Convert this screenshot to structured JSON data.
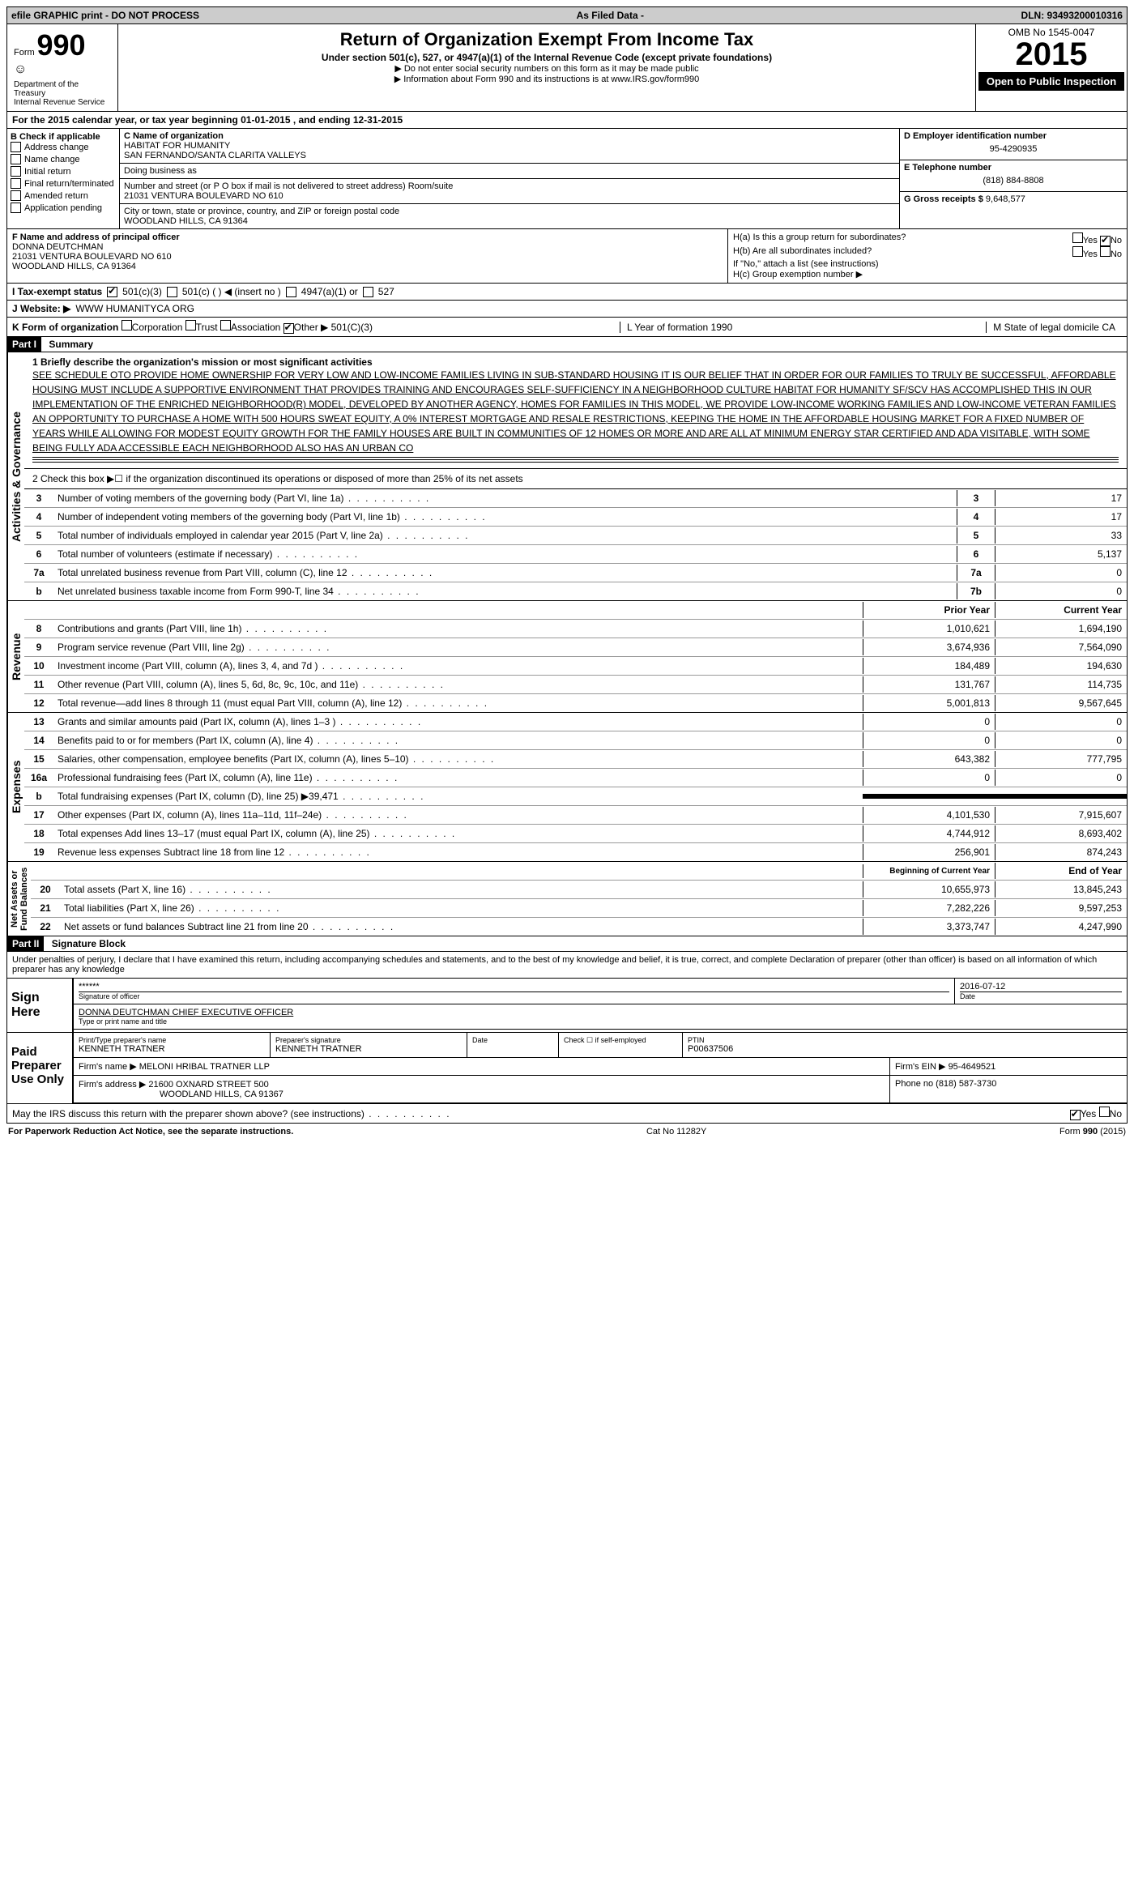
{
  "topbar": {
    "left": "efile GRAPHIC print - DO NOT PROCESS",
    "mid": "As Filed Data -",
    "right": "DLN: 93493200010316"
  },
  "header": {
    "formword": "Form",
    "formno": "990",
    "dept": "Department of the Treasury\nInternal Revenue Service",
    "title": "Return of Organization Exempt From Income Tax",
    "subtitle": "Under section 501(c), 527, or 4947(a)(1) of the Internal Revenue Code (except private foundations)",
    "note1": "▶ Do not enter social security numbers on this form as it may be made public",
    "note2": "▶ Information about Form 990 and its instructions is at www.IRS.gov/form990",
    "omb": "OMB No 1545-0047",
    "year": "2015",
    "open": "Open to Public Inspection"
  },
  "A": {
    "text": "For the 2015 calendar year, or tax year beginning 01-01-2015   , and ending 12-31-2015"
  },
  "B": {
    "label": "B  Check if applicable",
    "items": [
      "Address change",
      "Name change",
      "Initial return",
      "Final return/terminated",
      "Amended return",
      "Application pending"
    ]
  },
  "C": {
    "nameLabel": "C Name of organization",
    "name1": "HABITAT FOR HUMANITY",
    "name2": "SAN FERNANDO/SANTA CLARITA VALLEYS",
    "dba": "Doing business as",
    "addrLabel": "Number and street (or P O  box if mail is not delivered to street address) Room/suite",
    "addr": "21031 VENTURA BOULEVARD NO 610",
    "cityLabel": "City or town, state or province, country, and ZIP or foreign postal code",
    "city": "WOODLAND HILLS, CA  91364"
  },
  "D": {
    "label": "D Employer identification number",
    "val": "95-4290935"
  },
  "E": {
    "label": "E Telephone number",
    "val": "(818) 884-8808"
  },
  "G": {
    "label": "G Gross receipts $",
    "val": "9,648,577"
  },
  "F": {
    "label": "F   Name and address of principal officer",
    "name": "DONNA DEUTCHMAN",
    "addr1": "21031 VENTURA BOULEVARD NO 610",
    "addr2": "WOODLAND HILLS, CA  91364"
  },
  "H": {
    "a": "H(a)  Is this a group return for subordinates?",
    "ayes": "Yes",
    "ano": "No",
    "b": "H(b)  Are all subordinates included?",
    "bnote": "If \"No,\" attach a list  (see instructions)",
    "c": "H(c)   Group exemption number ▶"
  },
  "I": {
    "label": "I   Tax-exempt status",
    "opts": [
      "501(c)(3)",
      "501(c) ( ) ◀ (insert no )",
      "4947(a)(1) or",
      "527"
    ]
  },
  "J": {
    "label": "J   Website: ▶",
    "val": "WWW HUMANITYCA ORG"
  },
  "K": {
    "label": "K Form of organization",
    "opts": [
      "Corporation",
      "Trust",
      "Association",
      "Other ▶"
    ],
    "otherval": "501(C)(3)",
    "L": "L Year of formation  1990",
    "M": "M State of legal domicile  CA"
  },
  "part1": {
    "header": "Part I",
    "title": "Summary"
  },
  "mission": {
    "lead": "1 Briefly describe the organization's mission or most significant activities",
    "text": "SEE SCHEDULE OTO PROVIDE HOME OWNERSHIP FOR VERY LOW AND LOW-INCOME FAMILIES LIVING IN SUB-STANDARD HOUSING IT IS OUR BELIEF THAT IN ORDER FOR OUR FAMILIES TO TRULY BE SUCCESSFUL, AFFORDABLE HOUSING MUST INCLUDE A SUPPORTIVE ENVIRONMENT THAT PROVIDES TRAINING AND ENCOURAGES SELF-SUFFICIENCY IN A NEIGHBORHOOD CULTURE  HABITAT FOR HUMANITY SF/SCV HAS ACCOMPLISHED THIS IN OUR IMPLEMENTATION OF THE ENRICHED NEIGHBORHOOD(R) MODEL, DEVELOPED BY ANOTHER AGENCY, HOMES FOR FAMILIES IN THIS MODEL, WE PROVIDE LOW-INCOME WORKING FAMILIES AND LOW-INCOME VETERAN FAMILIES AN OPPORTUNITY TO PURCHASE A HOME WITH 500 HOURS SWEAT EQUITY, A 0% INTEREST MORTGAGE AND RESALE RESTRICTIONS, KEEPING THE HOME IN THE AFFORDABLE HOUSING MARKET FOR A FIXED NUMBER OF YEARS WHILE ALLOWING FOR MODEST EQUITY GROWTH FOR THE FAMILY HOUSES ARE BUILT IN COMMUNITIES OF 12 HOMES OR MORE AND ARE ALL AT MINIMUM ENERGY STAR CERTIFIED AND ADA VISITABLE, WITH SOME BEING FULLY ADA ACCESSIBLE  EACH NEIGHBORHOOD ALSO HAS AN URBAN CO"
  },
  "line2": "2  Check this box ▶☐ if the organization discontinued its operations or disposed of more than 25% of its net assets",
  "govLines": [
    {
      "n": "3",
      "label": "Number of voting members of the governing body (Part VI, line 1a)",
      "key": "3",
      "val": "17"
    },
    {
      "n": "4",
      "label": "Number of independent voting members of the governing body (Part VI, line 1b)",
      "key": "4",
      "val": "17"
    },
    {
      "n": "5",
      "label": "Total number of individuals employed in calendar year 2015 (Part V, line 2a)",
      "key": "5",
      "val": "33"
    },
    {
      "n": "6",
      "label": "Total number of volunteers (estimate if necessary)",
      "key": "6",
      "val": "5,137"
    },
    {
      "n": "7a",
      "label": "Total unrelated business revenue from Part VIII, column (C), line 12",
      "key": "7a",
      "val": "0"
    },
    {
      "n": "b",
      "label": "Net unrelated business taxable income from Form 990-T, line 34",
      "key": "7b",
      "val": "0"
    }
  ],
  "colHead1": "Prior Year",
  "colHead2": "Current Year",
  "revenue": [
    {
      "n": "8",
      "label": "Contributions and grants (Part VIII, line 1h)",
      "c1": "1,010,621",
      "c2": "1,694,190"
    },
    {
      "n": "9",
      "label": "Program service revenue (Part VIII, line 2g)",
      "c1": "3,674,936",
      "c2": "7,564,090"
    },
    {
      "n": "10",
      "label": "Investment income (Part VIII, column (A), lines 3, 4, and 7d )",
      "c1": "184,489",
      "c2": "194,630"
    },
    {
      "n": "11",
      "label": "Other revenue (Part VIII, column (A), lines 5, 6d, 8c, 9c, 10c, and 11e)",
      "c1": "131,767",
      "c2": "114,735"
    },
    {
      "n": "12",
      "label": "Total revenue—add lines 8 through 11 (must equal Part VIII, column (A), line 12)",
      "c1": "5,001,813",
      "c2": "9,567,645"
    }
  ],
  "expenses": [
    {
      "n": "13",
      "label": "Grants and similar amounts paid (Part IX, column (A), lines 1–3 )",
      "c1": "0",
      "c2": "0"
    },
    {
      "n": "14",
      "label": "Benefits paid to or for members (Part IX, column (A), line 4)",
      "c1": "0",
      "c2": "0"
    },
    {
      "n": "15",
      "label": "Salaries, other compensation, employee benefits (Part IX, column (A), lines 5–10)",
      "c1": "643,382",
      "c2": "777,795"
    },
    {
      "n": "16a",
      "label": "Professional fundraising fees (Part IX, column (A), line 11e)",
      "c1": "0",
      "c2": "0"
    },
    {
      "n": "b",
      "label": "Total fundraising expenses (Part IX, column (D), line 25) ▶39,471",
      "c1": "BLACK",
      "c2": "BLACK"
    },
    {
      "n": "17",
      "label": "Other expenses (Part IX, column (A), lines 11a–11d, 11f–24e)",
      "c1": "4,101,530",
      "c2": "7,915,607"
    },
    {
      "n": "18",
      "label": "Total expenses  Add lines 13–17 (must equal Part IX, column (A), line 25)",
      "c1": "4,744,912",
      "c2": "8,693,402"
    },
    {
      "n": "19",
      "label": "Revenue less expenses  Subtract line 18 from line 12",
      "c1": "256,901",
      "c2": "874,243"
    }
  ],
  "netHead1": "Beginning of Current Year",
  "netHead2": "End of Year",
  "net": [
    {
      "n": "20",
      "label": "Total assets (Part X, line 16)",
      "c1": "10,655,973",
      "c2": "13,845,243"
    },
    {
      "n": "21",
      "label": "Total liabilities (Part X, line 26)",
      "c1": "7,282,226",
      "c2": "9,597,253"
    },
    {
      "n": "22",
      "label": "Net assets or fund balances  Subtract line 21 from line 20",
      "c1": "3,373,747",
      "c2": "4,247,990"
    }
  ],
  "vlabels": {
    "gov": "Activities & Governance",
    "rev": "Revenue",
    "exp": "Expenses",
    "net": "Net Assets or\nFund Balances"
  },
  "part2": {
    "header": "Part II",
    "title": "Signature Block"
  },
  "perjury": "Under penalties of perjury, I declare that I have examined this return, including accompanying schedules and statements, and to the best of my knowledge and belief, it is true, correct, and complete  Declaration of preparer (other than officer) is based on all information of which preparer has any knowledge",
  "sign": {
    "here": "Sign Here",
    "stars": "******",
    "sigOfficer": "Signature of officer",
    "date": "2016-07-12",
    "dateLabel": "Date",
    "name": "DONNA DEUTCHMAN  CHIEF EXECUTIVE OFFICER",
    "nameLabel": "Type or print name and title"
  },
  "paid": {
    "here": "Paid Preparer Use Only",
    "pnameLabel": "Print/Type preparer's name",
    "pname": "KENNETH TRATNER",
    "psigLabel": "Preparer's signature",
    "psig": "KENNETH TRATNER",
    "pdateLabel": "Date",
    "checkLabel": "Check ☐ if self-employed",
    "ptinLabel": "PTIN",
    "ptin": "P00637506",
    "firmNameLabel": "Firm's name    ▶",
    "firmName": "MELONI HRIBAL TRATNER LLP",
    "firmEinLabel": "Firm's EIN ▶",
    "firmEin": "95-4649521",
    "firmAddrLabel": "Firm's address ▶",
    "firmAddr": "21600 OXNARD STREET 500",
    "firmCity": "WOODLAND HILLS, CA  91367",
    "phoneLabel": "Phone no ",
    "phone": "(818) 587-3730"
  },
  "discuss": "May the IRS discuss this return with the preparer shown above? (see instructions)",
  "discussYes": "Yes",
  "discussNo": "No",
  "footer": {
    "left": "For Paperwork Reduction Act Notice, see the separate instructions.",
    "mid": "Cat No  11282Y",
    "right": "Form 990 (2015)"
  }
}
